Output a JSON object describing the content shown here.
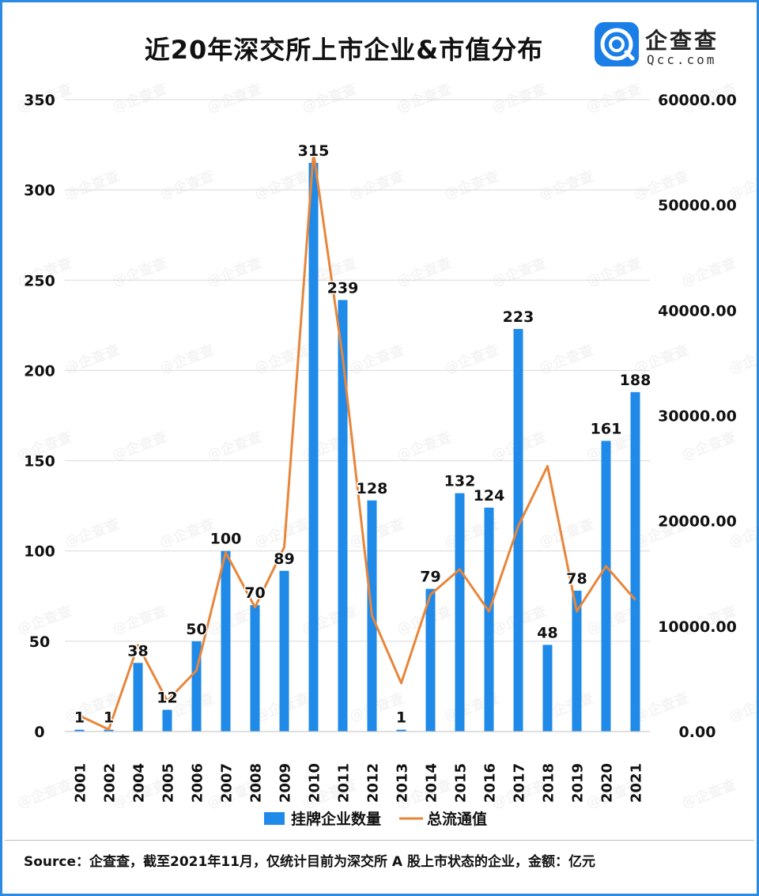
{
  "title": "近20年深交所上市企业&市值分布",
  "logo": {
    "cn": "企查查",
    "en": "Qcc.com"
  },
  "footer": {
    "source": "Source：企查查，截至2021年11月，仅统计目前为深交所 A 股上市状态的企业，金额：亿元"
  },
  "colors": {
    "bar": "#1f8ae8",
    "line": "#e8863a",
    "frame": "#2b8be0"
  },
  "chart_data": {
    "type": "bar",
    "categories": [
      "2001",
      "2002",
      "2004",
      "2005",
      "2006",
      "2007",
      "2008",
      "2009",
      "2010",
      "2011",
      "2012",
      "2013",
      "2014",
      "2015",
      "2016",
      "2017",
      "2018",
      "2019",
      "2020",
      "2021"
    ],
    "series": [
      {
        "name": "挂牌企业数量",
        "type": "bar",
        "axis": "left",
        "values": [
          1,
          1,
          38,
          12,
          50,
          100,
          70,
          89,
          315,
          239,
          128,
          1,
          79,
          132,
          124,
          223,
          48,
          78,
          161,
          188
        ]
      },
      {
        "name": "总流通值",
        "type": "line",
        "axis": "right",
        "values": [
          1500,
          200,
          8200,
          2900,
          5800,
          17000,
          11800,
          17500,
          55000,
          35500,
          11000,
          4600,
          13000,
          15400,
          11400,
          19500,
          25200,
          11400,
          15700,
          12500
        ]
      }
    ],
    "y_left": {
      "min": 0,
      "max": 350,
      "ticks": [
        "0",
        "50",
        "100",
        "150",
        "200",
        "250",
        "300",
        "350"
      ]
    },
    "y_right": {
      "min": 0,
      "max": 60000,
      "ticks": [
        "0.00",
        "10000.00",
        "20000.00",
        "30000.00",
        "40000.00",
        "50000.00",
        "60000.00"
      ]
    },
    "grid": true,
    "legend": "bottom"
  }
}
